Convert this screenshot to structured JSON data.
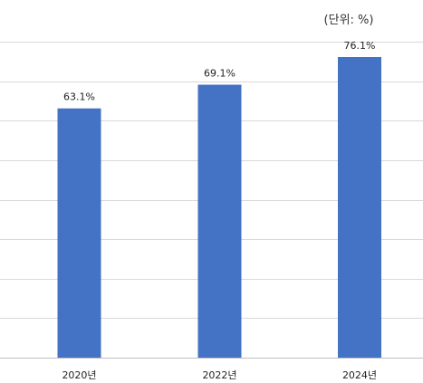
{
  "chart_data": {
    "type": "bar",
    "unit_label": "(단위: %)",
    "categories": [
      "2020년",
      "2022년",
      "2024년"
    ],
    "values": [
      63.1,
      69.1,
      76.1
    ],
    "value_labels": [
      "63.1%",
      "69.1%",
      "76.1%"
    ],
    "ylim": [
      0,
      80
    ],
    "grid": true,
    "bar_color": "#4472c4"
  }
}
